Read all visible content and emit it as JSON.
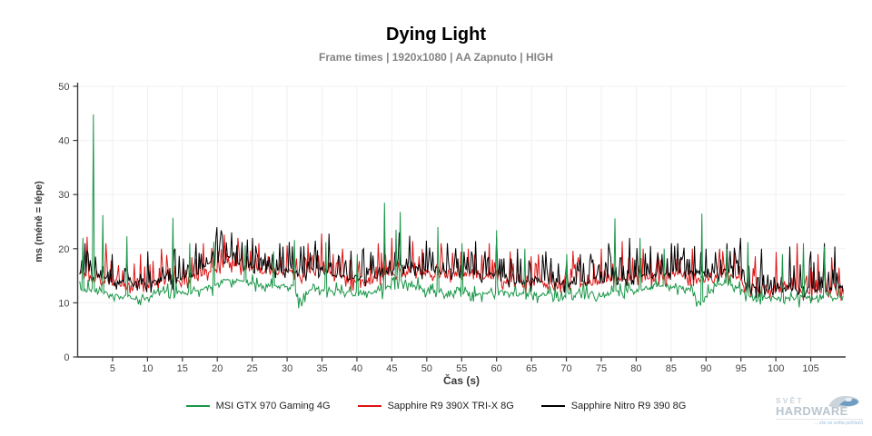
{
  "header": {
    "title": "Dying Light",
    "subtitle": "Frame times | 1920x1080 | AA Zapnuto | HIGH"
  },
  "chart_data": {
    "type": "line",
    "title": "Dying Light",
    "subtitle": "Frame times | 1920x1080 | AA Zapnuto | HIGH",
    "xlabel": "Čas (s)",
    "ylabel": "ms (méně = lépe)",
    "xlim": [
      0,
      110
    ],
    "ylim": [
      0,
      50
    ],
    "x_ticks": [
      5,
      10,
      15,
      20,
      25,
      30,
      35,
      40,
      45,
      50,
      55,
      60,
      65,
      70,
      75,
      80,
      85,
      90,
      95,
      100,
      105
    ],
    "y_ticks": [
      0,
      10,
      20,
      30,
      40,
      50
    ],
    "grid": true,
    "grid_color": "#f0f0f0",
    "axis_color": "#3a3a3a",
    "tick_label_color": "#444444",
    "legend_position": "bottom",
    "baseline_t_start": 1,
    "baseline_t_step": 1,
    "series": [
      {
        "name": "MSI GTX 970 Gaming 4G",
        "color": "#1a9648",
        "seed": 7,
        "noise": {
          "jitter": 0.45,
          "p_up": 0.28,
          "up": 2.0,
          "p_down": 0.22,
          "down": 1.5
        },
        "baseline": [
          12.5,
          12.2,
          12.0,
          11.8,
          11.3,
          11.0,
          11.2,
          10.8,
          10.7,
          10.8,
          11.5,
          11.8,
          12.0,
          12.0,
          11.8,
          12.0,
          12.2,
          12.4,
          13.0,
          13.5,
          14.0,
          13.8,
          14.2,
          14.0,
          13.6,
          13.2,
          13.0,
          12.8,
          13.0,
          13.2,
          12.8,
          10.2,
          12.0,
          12.3,
          12.5,
          12.4,
          12.2,
          12.0,
          11.8,
          11.6,
          11.8,
          12.0,
          12.2,
          12.4,
          13.8,
          14.0,
          13.6,
          13.0,
          12.6,
          12.4,
          12.2,
          12.0,
          11.8,
          11.9,
          12.0,
          11.8,
          11.6,
          11.8,
          12.0,
          12.2,
          12.0,
          11.8,
          11.6,
          11.5,
          11.4,
          11.5,
          11.6,
          11.4,
          11.3,
          11.2,
          11.4,
          11.6,
          11.8,
          11.6,
          11.4,
          11.6,
          11.8,
          12.0,
          12.2,
          12.4,
          12.6,
          12.8,
          13.0,
          13.2,
          13.0,
          12.8,
          12.6,
          12.4,
          10.0,
          10.8,
          12.8,
          13.0,
          13.2,
          13.0,
          12.6,
          11.6,
          11.2,
          11.0,
          11.0,
          11.2,
          11.0,
          10.8,
          11.0,
          11.2,
          11.0,
          10.8,
          11.0,
          11.2,
          11.0
        ],
        "spikes": [
          [
            0.7,
            22.0
          ],
          [
            2.2,
            44.8
          ],
          [
            3.6,
            26.2
          ],
          [
            7,
            22.3
          ],
          [
            13.6,
            25.7
          ],
          [
            16,
            21.0
          ],
          [
            19.5,
            21.3
          ],
          [
            24,
            20.6
          ],
          [
            28,
            19.5
          ],
          [
            31,
            21.6
          ],
          [
            31.6,
            9.0
          ],
          [
            35.6,
            21.2
          ],
          [
            40,
            19.0
          ],
          [
            44,
            28.5
          ],
          [
            45.6,
            23.5
          ],
          [
            46.2,
            26.8
          ],
          [
            51.6,
            24.0
          ],
          [
            55,
            21.0
          ],
          [
            60,
            23.4
          ],
          [
            64,
            20.0
          ],
          [
            70,
            19.0
          ],
          [
            77,
            25.6
          ],
          [
            80.5,
            22.0
          ],
          [
            84,
            20.0
          ],
          [
            88.6,
            9.3
          ],
          [
            89.4,
            26.5
          ],
          [
            93,
            20.0
          ],
          [
            96,
            21.2
          ],
          [
            101,
            19.0
          ],
          [
            104,
            21.0
          ],
          [
            107,
            20.4
          ]
        ]
      },
      {
        "name": "Sapphire R9 390X TRI-X 8G",
        "color": "#dd1414",
        "seed": 13,
        "noise": {
          "jitter": 0.6,
          "p_up": 0.5,
          "up": 4.6,
          "p_down": 0.28,
          "down": 1.8
        },
        "baseline": [
          15.5,
          15.0,
          14.5,
          14.0,
          13.8,
          13.5,
          13.3,
          13.0,
          13.0,
          13.2,
          13.5,
          13.8,
          14.0,
          14.2,
          14.0,
          14.5,
          15.0,
          15.5,
          16.0,
          16.5,
          17.0,
          16.8,
          16.5,
          16.5,
          16.2,
          16.0,
          15.8,
          15.5,
          15.5,
          15.8,
          15.5,
          15.2,
          15.5,
          15.8,
          16.0,
          15.5,
          15.0,
          14.5,
          14.2,
          14.0,
          14.0,
          14.2,
          14.5,
          15.0,
          15.5,
          15.8,
          16.0,
          15.8,
          15.5,
          15.5,
          15.2,
          15.0,
          15.2,
          15.5,
          15.3,
          15.0,
          14.8,
          15.0,
          15.2,
          14.8,
          14.0,
          13.8,
          13.5,
          13.5,
          13.6,
          13.8,
          13.5,
          13.4,
          13.5,
          13.6,
          13.5,
          13.4,
          13.5,
          13.8,
          14.0,
          14.0,
          14.2,
          14.0,
          14.2,
          14.5,
          14.5,
          14.3,
          14.5,
          14.8,
          15.0,
          15.2,
          15.0,
          14.8,
          14.5,
          14.5,
          14.8,
          15.0,
          15.2,
          15.0,
          14.0,
          13.0,
          12.5,
          12.3,
          12.2,
          12.4,
          12.2,
          12.0,
          12.2,
          12.4,
          12.2,
          12.0,
          12.2,
          12.3,
          12.2
        ],
        "spikes": [
          [
            1.4,
            22.2
          ],
          [
            4,
            21.0
          ],
          [
            9,
            19.0
          ],
          [
            12,
            20.0
          ],
          [
            18,
            21.0
          ],
          [
            21,
            22.6
          ],
          [
            23,
            22.0
          ],
          [
            26,
            21.0
          ],
          [
            30,
            20.6
          ],
          [
            33,
            21.0
          ],
          [
            35,
            22.8
          ],
          [
            38,
            20.0
          ],
          [
            43,
            21.0
          ],
          [
            45,
            22.0
          ],
          [
            48,
            21.4
          ],
          [
            52,
            21.0
          ],
          [
            56,
            20.0
          ],
          [
            59,
            21.0
          ],
          [
            62,
            19.5
          ],
          [
            66,
            19.0
          ],
          [
            71,
            19.6
          ],
          [
            75,
            20.0
          ],
          [
            78,
            21.4
          ],
          [
            81,
            20.0
          ],
          [
            85,
            20.6
          ],
          [
            88,
            20.0
          ],
          [
            92,
            20.0
          ],
          [
            94,
            19.5
          ],
          [
            97,
            18.6
          ],
          [
            100,
            19.4
          ],
          [
            103,
            21.0
          ],
          [
            106,
            19.0
          ],
          [
            108,
            18.4
          ]
        ]
      },
      {
        "name": "Sapphire Nitro R9 390 8G",
        "color": "#000000",
        "seed": 29,
        "noise": {
          "jitter": 0.6,
          "p_up": 0.5,
          "up": 5.0,
          "p_down": 0.28,
          "down": 1.8
        },
        "baseline": [
          15.8,
          15.2,
          14.8,
          14.5,
          14.2,
          14.0,
          13.8,
          13.5,
          13.5,
          13.8,
          14.0,
          14.2,
          14.0,
          14.3,
          14.5,
          14.8,
          15.5,
          16.5,
          17.5,
          18.5,
          18.8,
          18.2,
          17.5,
          17.0,
          16.8,
          16.5,
          16.2,
          16.0,
          16.0,
          16.2,
          15.8,
          15.5,
          15.8,
          16.0,
          16.2,
          15.8,
          15.4,
          15.0,
          14.8,
          14.6,
          14.5,
          14.8,
          15.0,
          15.5,
          16.2,
          16.5,
          16.8,
          16.5,
          16.2,
          16.0,
          15.8,
          15.6,
          15.8,
          16.0,
          15.8,
          15.5,
          15.2,
          15.4,
          15.5,
          15.0,
          14.2,
          14.0,
          13.8,
          13.8,
          14.0,
          14.0,
          13.8,
          13.6,
          13.8,
          14.0,
          13.8,
          13.6,
          13.8,
          14.0,
          14.2,
          14.3,
          14.5,
          14.5,
          14.8,
          15.0,
          15.2,
          15.0,
          15.3,
          15.5,
          15.8,
          16.0,
          15.8,
          15.5,
          15.2,
          15.0,
          15.3,
          15.6,
          16.0,
          15.8,
          14.5,
          13.2,
          12.8,
          12.6,
          12.5,
          12.6,
          12.5,
          12.4,
          12.5,
          12.6,
          12.5,
          12.4,
          12.5,
          12.6,
          12.5
        ],
        "spikes": [
          [
            1,
            21.0
          ],
          [
            5,
            19.0
          ],
          [
            10,
            19.5
          ],
          [
            14,
            20.0
          ],
          [
            17,
            21.0
          ],
          [
            20,
            24.0
          ],
          [
            20.6,
            23.4
          ],
          [
            22,
            23.0
          ],
          [
            25,
            22.0
          ],
          [
            29,
            21.0
          ],
          [
            32,
            20.4
          ],
          [
            34,
            21.5
          ],
          [
            36,
            22.8
          ],
          [
            41,
            20.0
          ],
          [
            44,
            21.0
          ],
          [
            46,
            23.0
          ],
          [
            47.6,
            22.4
          ],
          [
            50,
            21.5
          ],
          [
            53,
            21.0
          ],
          [
            57,
            21.4
          ],
          [
            60,
            22.0
          ],
          [
            63,
            20.0
          ],
          [
            67,
            19.5
          ],
          [
            72,
            19.0
          ],
          [
            76,
            21.0
          ],
          [
            79,
            22.0
          ],
          [
            82,
            20.5
          ],
          [
            86,
            21.0
          ],
          [
            90,
            20.0
          ],
          [
            93,
            21.0
          ],
          [
            95,
            22.0
          ],
          [
            98,
            20.0
          ],
          [
            102,
            20.4
          ],
          [
            105,
            19.5
          ],
          [
            107,
            21.0
          ],
          [
            108.5,
            20.4
          ]
        ]
      }
    ]
  },
  "watermark": {
    "line1": "SVĚT",
    "line2": "HARDWARE",
    "tagline": "... vše ze světa počítačů"
  }
}
